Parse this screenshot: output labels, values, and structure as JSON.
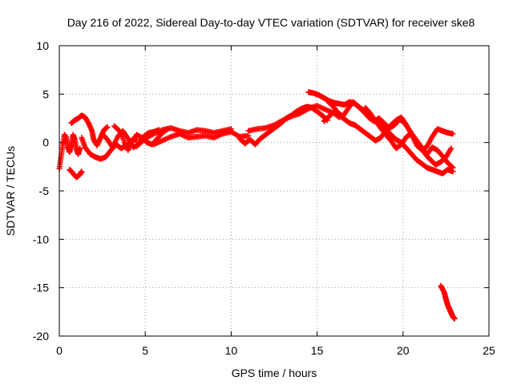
{
  "chart_data": {
    "type": "scatter",
    "title": "Day 216 of 2022, Sidereal Day-to-day VTEC variation (SDTVAR) for receiver ske8",
    "xlabel": "GPS time / hours",
    "ylabel": "SDTVAR / TECUs",
    "xlim": [
      0,
      25
    ],
    "ylim": [
      -20,
      10
    ],
    "x_ticks": [
      0,
      5,
      10,
      15,
      20,
      25
    ],
    "y_ticks": [
      -20,
      -15,
      -10,
      -5,
      0,
      5,
      10
    ],
    "grid": true,
    "marker": "+",
    "color": "#ff0000",
    "series": [
      {
        "name": "SDTVAR",
        "tracks": [
          [
            [
              0.0,
              -2.7
            ],
            [
              0.1,
              -1.5
            ],
            [
              0.2,
              -0.3
            ],
            [
              0.3,
              0.8
            ],
            [
              0.4,
              0.5
            ],
            [
              0.5,
              -0.5
            ],
            [
              0.6,
              -1.0
            ],
            [
              0.7,
              -0.2
            ],
            [
              0.8,
              0.8
            ],
            [
              0.9,
              0.3
            ],
            [
              1.0,
              -0.7
            ],
            [
              1.1,
              -1.2
            ],
            [
              1.2,
              -0.6
            ]
          ],
          [
            [
              0.6,
              -2.8
            ],
            [
              0.8,
              -3.2
            ],
            [
              1.0,
              -3.6
            ],
            [
              1.2,
              -3.3
            ],
            [
              1.3,
              -3.0
            ]
          ],
          [
            [
              0.7,
              2.0
            ],
            [
              0.9,
              2.3
            ],
            [
              1.1,
              2.5
            ],
            [
              1.3,
              2.8
            ],
            [
              1.5,
              2.6
            ],
            [
              1.7,
              2.0
            ],
            [
              1.9,
              1.2
            ],
            [
              2.0,
              0.3
            ],
            [
              2.2,
              -0.3
            ],
            [
              2.4,
              0.5
            ],
            [
              2.6,
              1.3
            ],
            [
              2.8,
              1.6
            ]
          ],
          [
            [
              1.3,
              0.5
            ],
            [
              1.5,
              -0.5
            ],
            [
              1.8,
              -1.2
            ],
            [
              2.1,
              -1.5
            ],
            [
              2.4,
              -1.7
            ],
            [
              2.7,
              -1.5
            ],
            [
              3.0,
              -0.8
            ],
            [
              3.3,
              -0.2
            ],
            [
              3.6,
              -0.6
            ],
            [
              3.9,
              -0.3
            ],
            [
              4.2,
              0.2
            ],
            [
              4.5,
              0.3
            ]
          ],
          [
            [
              2.5,
              0.9
            ],
            [
              2.8,
              0.3
            ],
            [
              3.1,
              -0.5
            ],
            [
              3.4,
              0.6
            ],
            [
              3.7,
              1.2
            ],
            [
              4.0,
              0.4
            ],
            [
              4.3,
              -0.5
            ],
            [
              4.6,
              -0.2
            ],
            [
              4.9,
              0.6
            ],
            [
              5.2,
              1.0
            ],
            [
              5.5,
              1.1
            ],
            [
              5.8,
              1.3
            ]
          ],
          [
            [
              3.2,
              1.7
            ],
            [
              3.5,
              1.2
            ],
            [
              3.8,
              0.0
            ],
            [
              4.0,
              -0.8
            ],
            [
              4.2,
              0.1
            ],
            [
              4.5,
              0.8
            ],
            [
              4.8,
              0.5
            ],
            [
              5.1,
              0.0
            ],
            [
              5.4,
              -0.2
            ],
            [
              5.7,
              0.4
            ],
            [
              6.0,
              1.0
            ],
            [
              6.3,
              1.4
            ]
          ],
          [
            [
              4.5,
              -0.4
            ],
            [
              5.0,
              0.4
            ],
            [
              5.5,
              0.9
            ],
            [
              6.0,
              1.3
            ],
            [
              6.5,
              1.5
            ],
            [
              7.0,
              1.2
            ],
            [
              7.5,
              1.0
            ],
            [
              8.0,
              1.3
            ],
            [
              8.5,
              1.2
            ],
            [
              9.0,
              1.0
            ],
            [
              9.5,
              1.2
            ],
            [
              10.0,
              1.4
            ]
          ],
          [
            [
              5.5,
              -0.2
            ],
            [
              6.0,
              0.2
            ],
            [
              6.5,
              0.6
            ],
            [
              7.0,
              0.9
            ],
            [
              7.5,
              0.5
            ],
            [
              8.0,
              0.6
            ],
            [
              8.5,
              0.7
            ],
            [
              9.0,
              0.5
            ],
            [
              9.5,
              0.9
            ],
            [
              10.0,
              1.1
            ],
            [
              10.5,
              0.6
            ],
            [
              11.0,
              0.7
            ]
          ],
          [
            [
              10.5,
              0.4
            ],
            [
              10.8,
              -0.1
            ],
            [
              11.1,
              0.3
            ],
            [
              11.4,
              -0.2
            ],
            [
              11.7,
              0.4
            ],
            [
              12.0,
              0.8
            ],
            [
              12.3,
              1.2
            ],
            [
              12.6,
              1.6
            ],
            [
              12.9,
              2.0
            ],
            [
              13.2,
              2.5
            ],
            [
              13.5,
              2.8
            ],
            [
              13.8,
              3.2
            ],
            [
              14.1,
              3.5
            ],
            [
              14.4,
              3.7
            ],
            [
              14.7,
              3.6
            ],
            [
              15.0,
              3.2
            ],
            [
              15.3,
              2.8
            ],
            [
              15.6,
              2.3
            ]
          ],
          [
            [
              11.0,
              1.2
            ],
            [
              11.5,
              1.4
            ],
            [
              12.0,
              1.5
            ],
            [
              12.5,
              1.8
            ],
            [
              13.0,
              2.3
            ],
            [
              13.5,
              2.7
            ],
            [
              14.0,
              3.0
            ],
            [
              14.5,
              3.5
            ],
            [
              15.0,
              3.8
            ],
            [
              15.5,
              3.4
            ],
            [
              16.0,
              3.0
            ],
            [
              16.3,
              2.6
            ]
          ],
          [
            [
              14.5,
              5.2
            ],
            [
              14.8,
              5.1
            ],
            [
              15.1,
              4.9
            ],
            [
              15.4,
              4.6
            ],
            [
              15.7,
              4.3
            ],
            [
              16.0,
              4.1
            ],
            [
              16.3,
              4.0
            ],
            [
              16.6,
              3.9
            ],
            [
              16.9,
              4.2
            ],
            [
              17.2,
              4.0
            ],
            [
              17.5,
              3.6
            ],
            [
              17.8,
              3.2
            ],
            [
              18.1,
              2.8
            ],
            [
              18.4,
              2.3
            ],
            [
              18.7,
              1.9
            ],
            [
              19.0,
              1.4
            ],
            [
              19.3,
              0.8
            ],
            [
              19.6,
              0.3
            ],
            [
              19.9,
              0.0
            ],
            [
              20.2,
              -0.6
            ],
            [
              20.5,
              -1.2
            ],
            [
              20.8,
              -1.8
            ],
            [
              21.1,
              -2.2
            ],
            [
              21.4,
              -2.6
            ],
            [
              21.7,
              -2.8
            ],
            [
              22.0,
              -3.0
            ],
            [
              22.3,
              -3.2
            ],
            [
              22.6,
              -2.8
            ],
            [
              22.9,
              -3.0
            ]
          ],
          [
            [
              15.6,
              4.3
            ],
            [
              15.9,
              3.8
            ],
            [
              16.2,
              3.1
            ],
            [
              16.5,
              2.7
            ],
            [
              16.8,
              3.5
            ],
            [
              17.1,
              4.2
            ],
            [
              17.4,
              3.7
            ],
            [
              17.7,
              3.2
            ],
            [
              18.0,
              2.6
            ],
            [
              18.3,
              2.2
            ],
            [
              18.6,
              2.5
            ],
            [
              18.9,
              2.0
            ],
            [
              19.2,
              1.5
            ],
            [
              19.5,
              1.8
            ],
            [
              19.8,
              2.4
            ],
            [
              20.1,
              2.0
            ],
            [
              20.4,
              1.2
            ],
            [
              20.7,
              0.4
            ],
            [
              21.0,
              -0.3
            ],
            [
              21.3,
              -1.2
            ],
            [
              21.6,
              -1.8
            ],
            [
              21.9,
              -2.3
            ],
            [
              22.2,
              -2.0
            ],
            [
              22.5,
              -1.5
            ],
            [
              22.8,
              -0.6
            ]
          ],
          [
            [
              15.4,
              2.2
            ],
            [
              15.7,
              2.7
            ],
            [
              16.0,
              3.2
            ],
            [
              16.3,
              2.8
            ],
            [
              16.6,
              2.4
            ],
            [
              16.9,
              2.0
            ],
            [
              17.2,
              1.8
            ],
            [
              17.5,
              1.4
            ],
            [
              17.8,
              1.0
            ],
            [
              18.1,
              0.6
            ],
            [
              18.4,
              0.2
            ],
            [
              18.7,
              0.5
            ],
            [
              19.0,
              1.2
            ],
            [
              19.3,
              1.8
            ],
            [
              19.6,
              2.3
            ],
            [
              19.9,
              2.6
            ],
            [
              20.2,
              1.8
            ],
            [
              20.5,
              0.8
            ],
            [
              20.8,
              -0.3
            ],
            [
              21.1,
              -0.8
            ],
            [
              21.4,
              -0.4
            ],
            [
              21.7,
              0.6
            ],
            [
              22.0,
              1.4
            ],
            [
              22.3,
              1.2
            ],
            [
              22.6,
              1.0
            ],
            [
              22.9,
              0.9
            ]
          ],
          [
            [
              17.8,
              3.6
            ],
            [
              18.1,
              3.0
            ],
            [
              18.4,
              2.2
            ],
            [
              18.7,
              1.5
            ],
            [
              19.0,
              0.8
            ],
            [
              19.3,
              0.2
            ],
            [
              19.6,
              -0.6
            ],
            [
              19.9,
              -0.2
            ],
            [
              20.2,
              0.6
            ],
            [
              20.5,
              0.9
            ],
            [
              20.8,
              0.2
            ],
            [
              21.1,
              -0.6
            ],
            [
              21.4,
              -1.2
            ],
            [
              21.7,
              -0.5
            ],
            [
              22.0,
              -0.8
            ],
            [
              22.3,
              -1.4
            ],
            [
              22.6,
              -2.1
            ],
            [
              22.9,
              -2.6
            ]
          ],
          [
            [
              22.2,
              -14.8
            ],
            [
              22.4,
              -15.5
            ],
            [
              22.5,
              -16.2
            ],
            [
              22.6,
              -16.8
            ],
            [
              22.7,
              -17.2
            ],
            [
              22.8,
              -17.6
            ],
            [
              22.9,
              -18.0
            ],
            [
              23.0,
              -18.2
            ]
          ]
        ]
      }
    ]
  }
}
